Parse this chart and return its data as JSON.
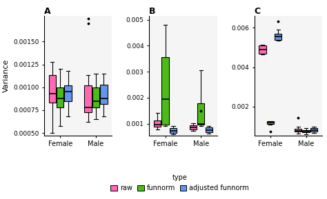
{
  "subplot_labels": [
    "A",
    "B",
    "C"
  ],
  "groups": [
    "Female",
    "Male"
  ],
  "colors": [
    "#FF69B4",
    "#4CBB17",
    "#6495ED"
  ],
  "edge_color": "black",
  "panel_A": {
    "female_raw": {
      "q1": 0.00083,
      "median": 0.00093,
      "q3": 0.00113,
      "whislo": 0.0005,
      "whishi": 0.00128,
      "fliers": []
    },
    "female_funnorm": {
      "q1": 0.00078,
      "median": 0.00088,
      "q3": 0.001,
      "whislo": 0.00058,
      "whishi": 0.0012,
      "fliers": []
    },
    "female_adj": {
      "q1": 0.00085,
      "median": 0.00095,
      "q3": 0.00102,
      "whislo": 0.00068,
      "whishi": 0.00118,
      "fliers": []
    },
    "male_raw": {
      "q1": 0.00073,
      "median": 0.00078,
      "q3": 0.00102,
      "whislo": 0.00062,
      "whishi": 0.00113,
      "fliers": [
        0.0017,
        0.00175
      ]
    },
    "male_funnorm": {
      "q1": 0.00078,
      "median": 0.00085,
      "q3": 0.001,
      "whislo": 0.00065,
      "whishi": 0.00115,
      "fliers": []
    },
    "male_adj": {
      "q1": 0.00082,
      "median": 0.00088,
      "q3": 0.00103,
      "whislo": 0.00068,
      "whishi": 0.00115,
      "fliers": []
    },
    "ylim": [
      0.000475,
      0.00178
    ],
    "yticks": [
      0.0005,
      0.00075,
      0.001,
      0.00125,
      0.0015
    ],
    "yticklabels": [
      "0.00050",
      "0.00075",
      "0.00100",
      "0.00125",
      "0.00150"
    ]
  },
  "panel_B": {
    "female_raw": {
      "q1": 0.00087,
      "median": 0.00097,
      "q3": 0.00112,
      "whislo": 0.00078,
      "whishi": 0.0014,
      "fliers": []
    },
    "female_funnorm": {
      "q1": 0.00095,
      "median": 0.00195,
      "q3": 0.00355,
      "whislo": 0.0009,
      "whishi": 0.0048,
      "fliers": []
    },
    "female_adj": {
      "q1": 0.00065,
      "median": 0.00072,
      "q3": 0.00083,
      "whislo": 0.0006,
      "whishi": 0.0009,
      "fliers": []
    },
    "male_raw": {
      "q1": 0.00078,
      "median": 0.00085,
      "q3": 0.00093,
      "whislo": 0.00072,
      "whishi": 0.00102,
      "fliers": []
    },
    "male_funnorm": {
      "q1": 0.00097,
      "median": 0.001,
      "q3": 0.00178,
      "whislo": 0.0009,
      "whishi": 0.00305,
      "fliers": [
        0.00148
      ]
    },
    "male_adj": {
      "q1": 0.00068,
      "median": 0.00075,
      "q3": 0.00085,
      "whislo": 0.00062,
      "whishi": 0.00092,
      "fliers": []
    },
    "ylim": [
      0.00055,
      0.00515
    ],
    "yticks": [
      0.001,
      0.002,
      0.003,
      0.004,
      0.005
    ],
    "yticklabels": [
      "0.001",
      "0.002",
      "0.003",
      "0.004",
      "0.005"
    ]
  },
  "panel_C": {
    "female_raw": {
      "q1": 0.0047,
      "median": 0.0049,
      "q3": 0.0051,
      "whislo": 0.00465,
      "whishi": 0.00515,
      "fliers": []
    },
    "female_funnorm": {
      "q1": 0.00112,
      "median": 0.00118,
      "q3": 0.00125,
      "whislo": 0.0011,
      "whishi": 0.00128,
      "fliers": [
        0.00075
      ]
    },
    "female_adj": {
      "q1": 0.0054,
      "median": 0.00555,
      "q3": 0.0057,
      "whislo": 0.00535,
      "whishi": 0.00592,
      "fliers": [
        0.00632
      ]
    },
    "male_raw": {
      "q1": 0.00073,
      "median": 0.00078,
      "q3": 0.00087,
      "whislo": 0.00065,
      "whishi": 0.001,
      "fliers": [
        0.00143
      ]
    },
    "male_funnorm": {
      "q1": 0.0007,
      "median": 0.00075,
      "q3": 0.00082,
      "whislo": 0.00062,
      "whishi": 0.00093,
      "fliers": []
    },
    "male_adj": {
      "q1": 0.00075,
      "median": 0.00082,
      "q3": 0.00092,
      "whislo": 0.00068,
      "whishi": 0.001,
      "fliers": []
    },
    "ylim": [
      0.00055,
      0.0066
    ],
    "yticks": [
      0.002,
      0.004,
      0.006
    ],
    "yticklabels": [
      "0.002",
      "0.004",
      "0.006"
    ]
  },
  "legend_labels": [
    "raw",
    "funnorm",
    "adjusted funnorm"
  ],
  "box_width": 0.2
}
